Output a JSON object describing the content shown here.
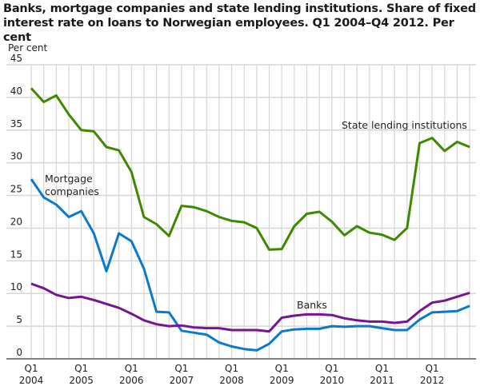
{
  "chart_data": {
    "type": "line",
    "title": "Banks, mortgage companies and state lending institutions. Share of fixed interest rate on loans to Norwegian employees. Q1 2004–Q4 2012. Per cent",
    "ylabel": "Per cent",
    "ylim": [
      0,
      45
    ],
    "yticks": [
      0,
      5,
      10,
      15,
      20,
      25,
      30,
      35,
      40,
      45
    ],
    "x_start": "2004Q1",
    "x_end": "2012Q4",
    "xtick_labels": [
      {
        "q": "Q1",
        "year": "2004"
      },
      {
        "q": "Q1",
        "year": "2005"
      },
      {
        "q": "Q1",
        "year": "2006"
      },
      {
        "q": "Q1",
        "year": "2007"
      },
      {
        "q": "Q1",
        "year": "2008"
      },
      {
        "q": "Q1",
        "year": "2009"
      },
      {
        "q": "Q1",
        "year": "2010"
      },
      {
        "q": "Q1",
        "year": "2011"
      },
      {
        "q": "Q1",
        "year": "2012"
      }
    ],
    "grid": true,
    "series": [
      {
        "name": "State lending institutions",
        "color": "#3d8a00",
        "values": [
          41.4,
          39.3,
          40.3,
          37.4,
          35.0,
          34.8,
          32.4,
          31.9,
          28.6,
          21.7,
          20.6,
          18.8,
          23.4,
          23.2,
          22.6,
          21.7,
          21.1,
          20.9,
          20.0,
          16.7,
          16.8,
          20.3,
          22.2,
          22.5,
          21.0,
          18.9,
          20.3,
          19.3,
          19.0,
          18.2,
          20.0,
          33.0,
          33.8,
          31.8,
          33.2,
          32.4
        ]
      },
      {
        "name": "Mortgage companies",
        "color": "#0a7ad1",
        "values": [
          27.5,
          24.7,
          23.6,
          21.7,
          22.6,
          19.2,
          13.4,
          19.2,
          18.0,
          13.8,
          7.2,
          7.1,
          4.3,
          4.0,
          3.7,
          2.5,
          1.9,
          1.5,
          1.3,
          2.3,
          4.2,
          4.5,
          4.6,
          4.6,
          5.0,
          4.9,
          5.0,
          5.0,
          4.7,
          4.4,
          4.4,
          6.0,
          7.1,
          7.2,
          7.3,
          8.1
        ]
      },
      {
        "name": "Banks",
        "color": "#76158f",
        "values": [
          11.5,
          10.8,
          9.8,
          9.3,
          9.5,
          9.0,
          8.4,
          7.8,
          6.9,
          5.9,
          5.3,
          5.0,
          5.1,
          4.8,
          4.7,
          4.7,
          4.4,
          4.4,
          4.4,
          4.2,
          6.3,
          6.6,
          6.8,
          6.8,
          6.7,
          6.2,
          5.9,
          5.7,
          5.7,
          5.5,
          5.7,
          7.3,
          8.6,
          8.9,
          9.5,
          10.1
        ]
      }
    ],
    "series_labels": [
      {
        "lines": [
          "State lending institutions"
        ]
      },
      {
        "lines": [
          "Mortgage",
          "companies"
        ]
      },
      {
        "lines": [
          "Banks"
        ]
      }
    ]
  }
}
